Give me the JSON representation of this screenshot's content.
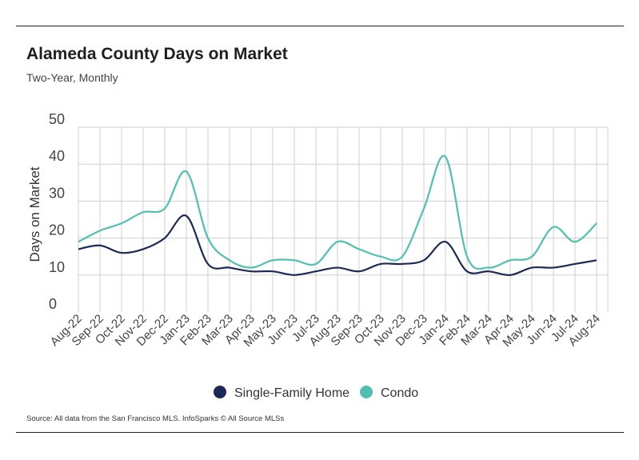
{
  "header": {
    "title": "Alameda County Days on Market",
    "subtitle": "Two-Year, Monthly"
  },
  "footer": {
    "source": "Source:  All data from the San Francisco MLS. InfoSparks © All Source MLSs"
  },
  "chart_data": {
    "type": "line",
    "title": "Alameda County Days on Market",
    "subtitle": "Two-Year, Monthly",
    "xlabel": "",
    "ylabel": "Days on Market",
    "ylim": [
      0,
      50
    ],
    "yticks": [
      0,
      10,
      20,
      30,
      40,
      50
    ],
    "grid": "vertical and horizontal",
    "legend_position": "bottom",
    "categories": [
      "Aug-22",
      "Sep-22",
      "Oct-22",
      "Nov-22",
      "Dec-22",
      "Jan-23",
      "Feb-23",
      "Mar-23",
      "Apr-23",
      "May-23",
      "Jun-23",
      "Jul-23",
      "Aug-23",
      "Sep-23",
      "Oct-23",
      "Nov-23",
      "Dec-23",
      "Jan-24",
      "Feb-24",
      "Mar-24",
      "Apr-24",
      "May-24",
      "Jun-24",
      "Jul-24",
      "Aug-24"
    ],
    "series": [
      {
        "name": "Single-Family Home",
        "color": "#1c2957",
        "values": [
          17,
          18,
          16,
          17,
          20,
          26,
          13,
          12,
          11,
          11,
          10,
          11,
          12,
          11,
          13,
          13,
          14,
          19,
          11,
          11,
          10,
          12,
          12,
          13,
          14
        ]
      },
      {
        "name": "Condo",
        "color": "#4fc1ad",
        "values": [
          19,
          22,
          24,
          27,
          28,
          38,
          20,
          14,
          12,
          14,
          14,
          13,
          19,
          17,
          15,
          15,
          28,
          42,
          15,
          12,
          14,
          15,
          23,
          19,
          24
        ]
      }
    ]
  }
}
